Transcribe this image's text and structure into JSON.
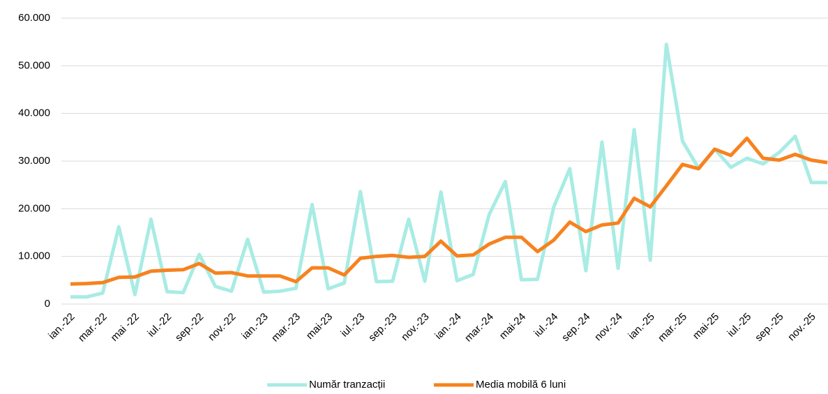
{
  "chart_data": {
    "type": "line",
    "categories": [
      "ian.-22",
      null,
      "mar.-22",
      null,
      "mai -22",
      null,
      "iul.-22",
      null,
      "sep.-22",
      null,
      "nov.-22",
      null,
      "ian.-23",
      null,
      "mar.-23",
      null,
      "mai-23",
      null,
      "iul.-23",
      null,
      "sep.-23",
      null,
      "nov.-23",
      null,
      "ian.-24",
      null,
      "mar.-24",
      null,
      "mai-24",
      null,
      "iul.-24",
      null,
      "sep.-24",
      null,
      "nov.-24",
      null,
      "ian.-25",
      null,
      "mar.-25",
      null,
      "mai-25",
      null,
      "iul.-25",
      null,
      "sep.-25",
      null,
      "nov.-25",
      null
    ],
    "series": [
      {
        "name": "Număr tranzacții",
        "color": "#a8ece4",
        "values": [
          1500,
          1500,
          2300,
          16200,
          2000,
          17800,
          2600,
          2400,
          10400,
          3700,
          2700,
          13600,
          2500,
          2700,
          3300,
          20900,
          3200,
          4400,
          23600,
          4700,
          4800,
          17800,
          4800,
          23500,
          4900,
          6200,
          18800,
          25700,
          5100,
          5200,
          20300,
          28400,
          7000,
          34000,
          7500,
          36600,
          9200,
          54500,
          34200,
          28500,
          32500,
          28700,
          30600,
          29400,
          31800,
          35200,
          25500,
          25500
        ]
      },
      {
        "name": "Media mobilă 6 luni",
        "color": "#f7821e",
        "values": [
          4200,
          4300,
          4500,
          5600,
          5700,
          6900,
          7100,
          7200,
          8500,
          6500,
          6600,
          5900,
          5900,
          5900,
          4700,
          7600,
          7600,
          6100,
          9600,
          10000,
          10200,
          9800,
          10000,
          13200,
          10100,
          10300,
          12600,
          14000,
          14000,
          11000,
          13400,
          17200,
          15200,
          16600,
          17000,
          22200,
          20400,
          24800,
          29300,
          28400,
          32500,
          31200,
          34800,
          30600,
          30200,
          31400,
          30200,
          29700
        ]
      }
    ],
    "ylim": [
      0,
      60000
    ],
    "yticks": [
      0,
      {
        "value": 10000,
        "label": "10.000"
      },
      {
        "value": 20000,
        "label": "20.000"
      },
      {
        "value": 30000,
        "label": "30.000"
      },
      {
        "value": 40000,
        "label": "40.000"
      },
      {
        "value": 50000,
        "label": "50.000"
      },
      {
        "value": 60000,
        "label": "60.000"
      }
    ],
    "grid": true,
    "legend": "bottom"
  }
}
